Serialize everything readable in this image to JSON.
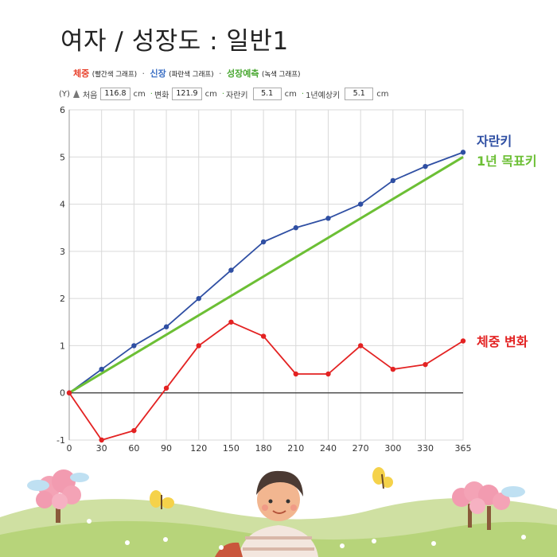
{
  "title": "여자 / 성장도 : 일반1",
  "legend": {
    "weight": "체중",
    "weight_note": "(빨간색 그래프)",
    "height": "신장",
    "height_note": "(파란색 그래프)",
    "predict": "성장예측",
    "predict_note": "(녹색 그래프)",
    "separator": "·"
  },
  "controls": {
    "y_label": "(Y)",
    "start_label": "처음",
    "start_value": "116.8",
    "unit": "cm",
    "change_label": "변화",
    "change_value": "121.9",
    "grown_label": "자란키",
    "grown_value": "5.1",
    "expect_label": "1년예상키",
    "expect_value": "5.1"
  },
  "colors": {
    "height": "#2f4fa3",
    "predict": "#6cbf35",
    "weight": "#e32222",
    "grid": "#d9d9d9",
    "axis": "#333333"
  },
  "chart_data": {
    "type": "line",
    "x": [
      0,
      30,
      60,
      90,
      120,
      150,
      180,
      210,
      240,
      270,
      300,
      330,
      365
    ],
    "xticks": [
      0,
      30,
      60,
      90,
      120,
      150,
      180,
      210,
      240,
      270,
      300,
      330,
      365
    ],
    "ylim": [
      -1,
      6
    ],
    "yticks": [
      -1,
      0,
      1,
      2,
      3,
      4,
      5,
      6
    ],
    "grid": true,
    "series": [
      {
        "name": "자란키",
        "color": "#2f4fa3",
        "markers": true,
        "values": [
          0,
          0.5,
          1.0,
          1.4,
          2.0,
          2.6,
          3.2,
          3.5,
          3.7,
          4.0,
          4.5,
          4.8,
          5.1
        ]
      },
      {
        "name": "1년 목표키",
        "color": "#6cbf35",
        "markers": false,
        "x": [
          0,
          365
        ],
        "values": [
          0,
          5.0
        ]
      },
      {
        "name": "체중 변화",
        "color": "#e32222",
        "markers": true,
        "values": [
          0,
          -1.0,
          -0.8,
          0.1,
          1.0,
          1.5,
          1.2,
          0.4,
          0.4,
          1.0,
          0.5,
          0.6,
          1.1
        ]
      }
    ]
  }
}
